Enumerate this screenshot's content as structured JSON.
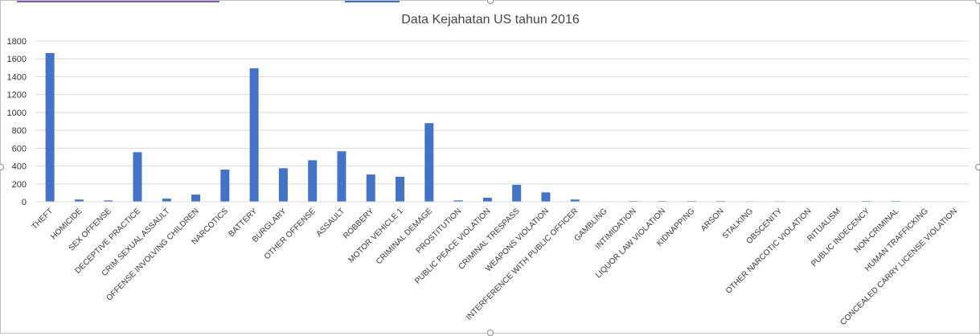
{
  "chart_data": {
    "type": "bar",
    "title": "Data Kejahatan US tahun 2016",
    "xlabel": "",
    "ylabel": "",
    "ylim": [
      0,
      1800
    ],
    "yticks": [
      0,
      200,
      400,
      600,
      800,
      1000,
      1200,
      1400,
      1600,
      1800
    ],
    "grid": true,
    "legend": "none",
    "bar_color": "#4472c4",
    "categories": [
      "THEFT",
      "HOMICIDE",
      "SEX OFFENSE",
      "DECEPTIVE PRACTICE",
      "CRIM SEXUAL ASSAULT",
      "OFFENSE INVOLVING CHILDREN",
      "NARCOTICS",
      "BATTERY",
      "BURGLARY",
      "OTHER OFFENSE",
      "ASSAULT",
      "ROBBERY",
      "MOTOR VEHICLE 1",
      "CRIMINAL DEMAGE",
      "PROSTITUTION",
      "PUBLIC PEACE VIOLATION",
      "CRIMINAL TRESPASS",
      "WEAPONS VIOLATION",
      "INTERFERENCE WITH PUBLIC OFFICER",
      "GAMBLING",
      "INTIMIDATION",
      "LIQUOR LAW VIOLATION",
      "KIDNAPPING",
      "ARSON",
      "STALKING",
      "OBSCENITY",
      "OTHER NARCOTIC VIOLATION",
      "RITUALISM",
      "PUBLIC INDECENCY",
      "NON-CRIMINAL",
      "HUMAN TRAFFICKING",
      "CONCEALED CARRY LICENSE VIOLATION"
    ],
    "values": [
      1665,
      25,
      15,
      555,
      35,
      80,
      360,
      1495,
      375,
      465,
      565,
      305,
      280,
      880,
      15,
      45,
      190,
      105,
      25,
      5,
      8,
      8,
      8,
      8,
      6,
      6,
      0,
      0,
      8,
      8,
      0,
      0
    ]
  }
}
